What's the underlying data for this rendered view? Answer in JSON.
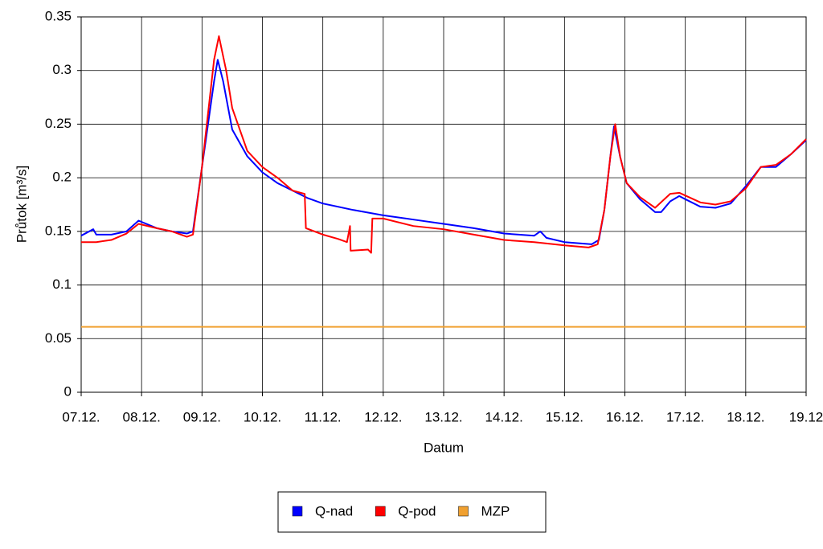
{
  "chart_data": {
    "type": "line",
    "xlabel": "Datum",
    "ylabel": "Průtok [m³/s]",
    "xlim": [
      0,
      12
    ],
    "xticks": [
      {
        "value": 0,
        "label": "07.12."
      },
      {
        "value": 1,
        "label": "08.12."
      },
      {
        "value": 2,
        "label": "09.12."
      },
      {
        "value": 3,
        "label": "10.12."
      },
      {
        "value": 4,
        "label": "11.12."
      },
      {
        "value": 5,
        "label": "12.12."
      },
      {
        "value": 6,
        "label": "13.12."
      },
      {
        "value": 7,
        "label": "14.12."
      },
      {
        "value": 8,
        "label": "15.12."
      },
      {
        "value": 9,
        "label": "16.12."
      },
      {
        "value": 10,
        "label": "17.12."
      },
      {
        "value": 11,
        "label": "18.12."
      },
      {
        "value": 12,
        "label": "19.12"
      }
    ],
    "ylim": [
      0,
      0.35
    ],
    "yticks": [
      0,
      0.05,
      0.1,
      0.15,
      0.2,
      0.25,
      0.3,
      0.35
    ],
    "grid": true,
    "legend": "bottom",
    "series": [
      {
        "name": "Q-nad",
        "color": "#0000ff",
        "x": [
          0,
          0.2,
          0.25,
          0.5,
          0.75,
          0.95,
          1.25,
          1.5,
          1.75,
          1.85,
          2.0,
          2.1,
          2.2,
          2.26,
          2.35,
          2.5,
          2.75,
          3.0,
          3.25,
          3.5,
          3.75,
          4.0,
          4.5,
          5.0,
          5.5,
          6.0,
          6.5,
          7.0,
          7.5,
          7.6,
          7.7,
          8.0,
          8.45,
          8.57,
          8.66,
          8.76,
          8.82,
          8.92,
          9.03,
          9.25,
          9.5,
          9.6,
          9.75,
          9.9,
          10.0,
          10.25,
          10.5,
          10.75,
          11.0,
          11.25,
          11.5,
          11.75,
          12.0
        ],
        "values": [
          0.146,
          0.152,
          0.147,
          0.147,
          0.15,
          0.16,
          0.153,
          0.15,
          0.148,
          0.15,
          0.21,
          0.25,
          0.29,
          0.31,
          0.29,
          0.245,
          0.22,
          0.205,
          0.195,
          0.188,
          0.181,
          0.176,
          0.17,
          0.165,
          0.161,
          0.157,
          0.153,
          0.148,
          0.146,
          0.15,
          0.144,
          0.14,
          0.138,
          0.142,
          0.17,
          0.22,
          0.248,
          0.22,
          0.195,
          0.18,
          0.168,
          0.168,
          0.178,
          0.183,
          0.18,
          0.173,
          0.172,
          0.176,
          0.192,
          0.21,
          0.21,
          0.222,
          0.235
        ]
      },
      {
        "name": "Q-pod",
        "color": "#ff0000",
        "x": [
          0,
          0.25,
          0.5,
          0.75,
          0.95,
          1.25,
          1.5,
          1.75,
          1.85,
          2.0,
          2.1,
          2.2,
          2.28,
          2.4,
          2.5,
          2.75,
          3.0,
          3.25,
          3.5,
          3.7,
          3.72,
          4.0,
          4.25,
          4.4,
          4.45,
          4.46,
          4.75,
          4.8,
          4.82,
          5.0,
          5.5,
          6.0,
          6.5,
          7.0,
          7.5,
          8.0,
          8.4,
          8.55,
          8.66,
          8.76,
          8.84,
          8.92,
          9.03,
          9.25,
          9.5,
          9.75,
          9.9,
          10.25,
          10.5,
          10.75,
          11.0,
          11.25,
          11.5,
          11.75,
          12.0
        ],
        "values": [
          0.14,
          0.14,
          0.142,
          0.148,
          0.157,
          0.153,
          0.15,
          0.145,
          0.147,
          0.21,
          0.26,
          0.31,
          0.332,
          0.3,
          0.265,
          0.225,
          0.21,
          0.2,
          0.188,
          0.185,
          0.153,
          0.147,
          0.143,
          0.14,
          0.155,
          0.132,
          0.133,
          0.13,
          0.162,
          0.162,
          0.155,
          0.152,
          0.147,
          0.142,
          0.14,
          0.137,
          0.135,
          0.138,
          0.17,
          0.22,
          0.25,
          0.22,
          0.195,
          0.182,
          0.172,
          0.185,
          0.186,
          0.177,
          0.175,
          0.178,
          0.19,
          0.21,
          0.212,
          0.222,
          0.236
        ]
      },
      {
        "name": "MZP",
        "color": "#f0a030",
        "x": [
          0,
          12
        ],
        "values": [
          0.061,
          0.061
        ]
      }
    ]
  }
}
